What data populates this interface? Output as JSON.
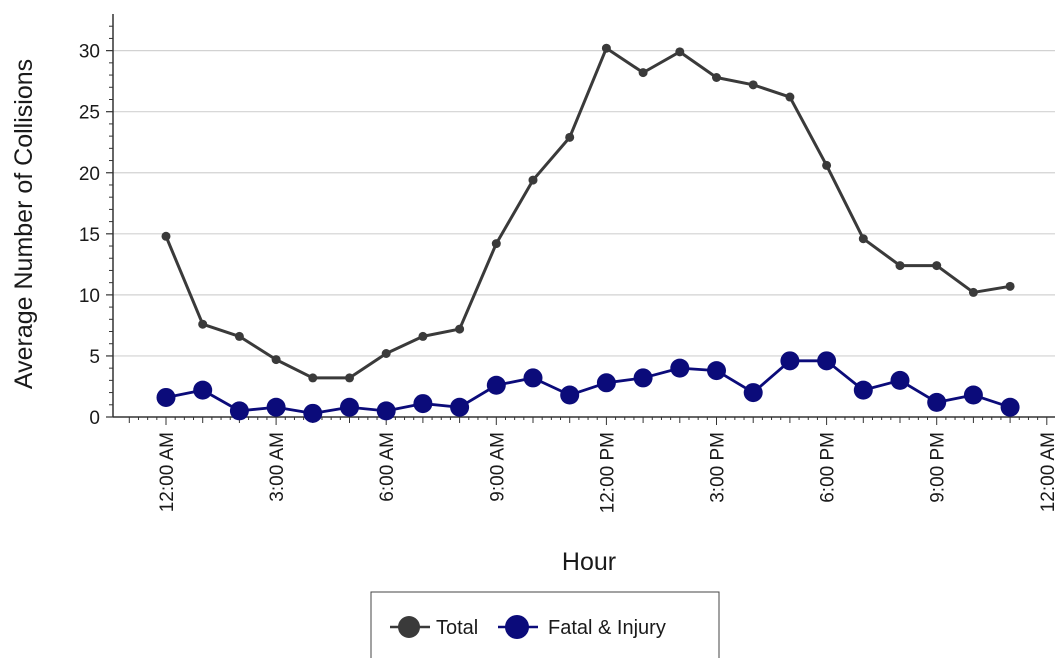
{
  "chart_data": {
    "type": "line",
    "xlabel": "Hour",
    "ylabel": "Average Number of Collisions",
    "x": [
      "12:00 AM",
      "1:00 AM",
      "2:00 AM",
      "3:00 AM",
      "4:00 AM",
      "5:00 AM",
      "6:00 AM",
      "7:00 AM",
      "8:00 AM",
      "9:00 AM",
      "10:00 AM",
      "11:00 AM",
      "12:00 PM",
      "1:00 PM",
      "2:00 PM",
      "3:00 PM",
      "4:00 PM",
      "5:00 PM",
      "6:00 PM",
      "7:00 PM",
      "8:00 PM",
      "9:00 PM",
      "10:00 PM",
      "11:00 PM"
    ],
    "x_tick_labels": [
      "12:00 AM",
      "3:00 AM",
      "6:00 AM",
      "9:00 AM",
      "12:00 PM",
      "3:00 PM",
      "6:00 PM",
      "9:00 PM",
      "12:00 AM"
    ],
    "y_ticks": [
      0,
      5,
      10,
      15,
      20,
      25,
      30
    ],
    "ylim": [
      0,
      33
    ],
    "grid": "horizontal",
    "legend_position": "bottom",
    "series": [
      {
        "name": "Total",
        "color": "#3a3a3a",
        "values": [
          14.8,
          7.6,
          6.6,
          4.7,
          3.2,
          3.2,
          5.2,
          6.6,
          7.2,
          14.2,
          19.4,
          22.9,
          30.2,
          28.2,
          29.9,
          27.8,
          27.2,
          26.2,
          20.6,
          14.6,
          12.4,
          12.4,
          10.2,
          10.7
        ]
      },
      {
        "name": "Fatal & Injury",
        "color": "#0b0b7a",
        "values": [
          1.6,
          2.2,
          0.5,
          0.8,
          0.3,
          0.8,
          0.5,
          1.1,
          0.8,
          2.6,
          3.2,
          1.8,
          2.8,
          3.2,
          4.0,
          3.8,
          2.0,
          4.6,
          4.6,
          2.2,
          3.0,
          1.2,
          1.8,
          0.8
        ]
      }
    ]
  }
}
